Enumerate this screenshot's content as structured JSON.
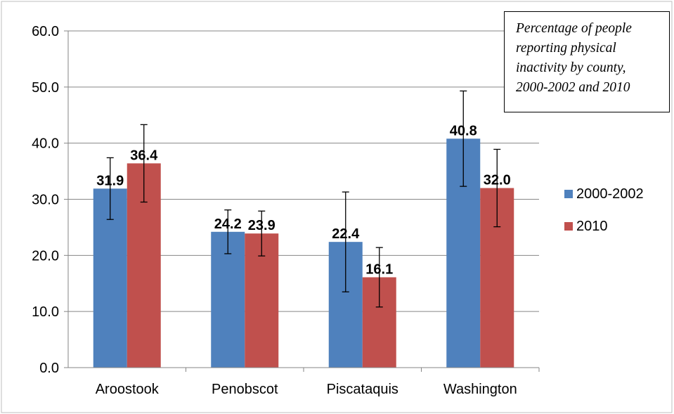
{
  "chart_data": {
    "type": "bar",
    "title_lines": [
      "Percentage of people",
      "reporting physical",
      "inactivity by county,",
      "2000-2002 and 2010"
    ],
    "categories": [
      "Aroostook",
      "Penobscot",
      "Piscataquis",
      "Washington"
    ],
    "series": [
      {
        "name": "2000-2002",
        "color": "#4F81BD",
        "values": [
          31.9,
          24.2,
          22.4,
          40.8
        ],
        "value_labels": [
          "31.9",
          "24.2",
          "22.4",
          "40.8"
        ],
        "error_low": [
          26.4,
          20.3,
          13.5,
          32.3
        ],
        "error_high": [
          37.4,
          28.1,
          31.3,
          49.3
        ]
      },
      {
        "name": "2010",
        "color": "#C0504D",
        "values": [
          36.4,
          23.9,
          16.1,
          32.0
        ],
        "value_labels": [
          "36.4",
          "23.9",
          "16.1",
          "32.0"
        ],
        "error_low": [
          29.5,
          19.9,
          10.8,
          25.1
        ],
        "error_high": [
          43.3,
          27.9,
          21.4,
          38.9
        ]
      }
    ],
    "ylim": [
      0,
      60
    ],
    "yticks": [
      "0.0",
      "10.0",
      "20.0",
      "30.0",
      "40.0",
      "50.0",
      "60.0"
    ],
    "grid": true,
    "legend_position": "right"
  }
}
